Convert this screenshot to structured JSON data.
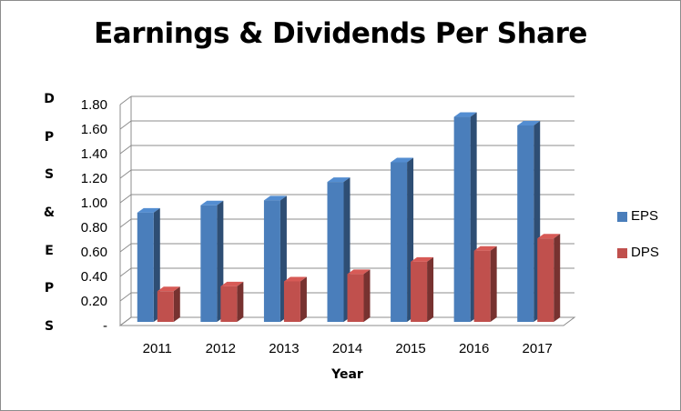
{
  "chart_data": {
    "type": "bar",
    "title": "Earnings & Dividends Per Share",
    "xlabel": "Year",
    "ylabel": "DPS & EPS",
    "categories": [
      "2011",
      "2012",
      "2013",
      "2014",
      "2015",
      "2016",
      "2017"
    ],
    "series": [
      {
        "name": "EPS",
        "color": "#4a7ebb",
        "values": [
          0.89,
          0.95,
          0.99,
          1.14,
          1.3,
          1.67,
          1.6
        ]
      },
      {
        "name": "DPS",
        "color": "#c0504d",
        "values": [
          0.25,
          0.29,
          0.33,
          0.39,
          0.49,
          0.58,
          0.68
        ]
      }
    ],
    "ylim": [
      0,
      1.8
    ],
    "yticks": [
      "-",
      "0.20",
      "0.40",
      "0.60",
      "0.80",
      "1.00",
      "1.20",
      "1.40",
      "1.60",
      "1.80"
    ],
    "grid": true,
    "legend_position": "right",
    "style": "3d-clustered-column"
  }
}
